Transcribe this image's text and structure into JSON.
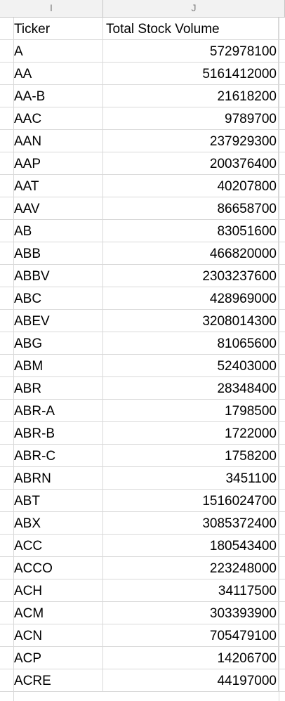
{
  "columns": {
    "i": "I",
    "j": "J"
  },
  "header": {
    "ticker": "Ticker",
    "volume": "Total Stock Volume"
  },
  "rows": [
    {
      "ticker": "A",
      "volume": "572978100"
    },
    {
      "ticker": "AA",
      "volume": "5161412000"
    },
    {
      "ticker": "AA-B",
      "volume": "21618200"
    },
    {
      "ticker": "AAC",
      "volume": "9789700"
    },
    {
      "ticker": "AAN",
      "volume": "237929300"
    },
    {
      "ticker": "AAP",
      "volume": "200376400"
    },
    {
      "ticker": "AAT",
      "volume": "40207800"
    },
    {
      "ticker": "AAV",
      "volume": "86658700"
    },
    {
      "ticker": "AB",
      "volume": "83051600"
    },
    {
      "ticker": "ABB",
      "volume": "466820000"
    },
    {
      "ticker": "ABBV",
      "volume": "2303237600"
    },
    {
      "ticker": "ABC",
      "volume": "428969000"
    },
    {
      "ticker": "ABEV",
      "volume": "3208014300"
    },
    {
      "ticker": "ABG",
      "volume": "81065600"
    },
    {
      "ticker": "ABM",
      "volume": "52403000"
    },
    {
      "ticker": "ABR",
      "volume": "28348400"
    },
    {
      "ticker": "ABR-A",
      "volume": "1798500"
    },
    {
      "ticker": "ABR-B",
      "volume": "1722000"
    },
    {
      "ticker": "ABR-C",
      "volume": "1758200"
    },
    {
      "ticker": "ABRN",
      "volume": "3451100"
    },
    {
      "ticker": "ABT",
      "volume": "1516024700"
    },
    {
      "ticker": "ABX",
      "volume": "3085372400"
    },
    {
      "ticker": "ACC",
      "volume": "180543400"
    },
    {
      "ticker": "ACCO",
      "volume": "223248000"
    },
    {
      "ticker": "ACH",
      "volume": "34117500"
    },
    {
      "ticker": "ACM",
      "volume": "303393900"
    },
    {
      "ticker": "ACN",
      "volume": "705479100"
    },
    {
      "ticker": "ACP",
      "volume": "14206700"
    },
    {
      "ticker": "ACRE",
      "volume": "44197000"
    }
  ]
}
